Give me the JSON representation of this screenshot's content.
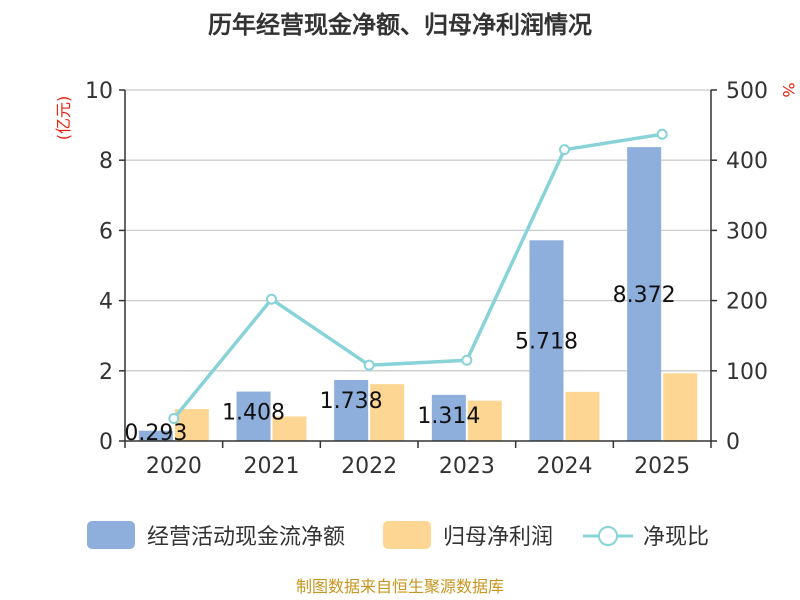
{
  "chart_data": {
    "type": "bar",
    "title": "历年经营现金净额、归母净利润情况",
    "left_axis_unit": "(亿元)",
    "right_axis_unit": "%",
    "categories": [
      "2020",
      "2021",
      "2022",
      "2023",
      "2024",
      "2025"
    ],
    "ylim": [
      0,
      10
    ],
    "yticks": [
      0,
      2,
      4,
      6,
      8,
      10
    ],
    "y2lim": [
      0,
      500
    ],
    "y2ticks": [
      0,
      100,
      200,
      300,
      400,
      500
    ],
    "grid": true,
    "legend_position": "bottom",
    "series": [
      {
        "name": "经营活动现金流净额",
        "type": "bar",
        "axis": "left",
        "color": "#8eaedb",
        "values": [
          0.293,
          1.408,
          1.738,
          1.314,
          5.718,
          8.372
        ],
        "labels": [
          "0.293",
          "1.408",
          "1.738",
          "1.314",
          "5.718",
          "8.372"
        ]
      },
      {
        "name": "归母净利润",
        "type": "bar",
        "axis": "left",
        "color": "#fdd694",
        "values": [
          0.91,
          0.7,
          1.62,
          1.15,
          1.4,
          1.93
        ]
      },
      {
        "name": "净现比",
        "type": "line",
        "axis": "right",
        "color": "#88d3d8",
        "values": [
          32,
          202,
          108,
          115,
          415,
          437
        ]
      }
    ],
    "source": "制图数据来自恒生聚源数据库"
  }
}
